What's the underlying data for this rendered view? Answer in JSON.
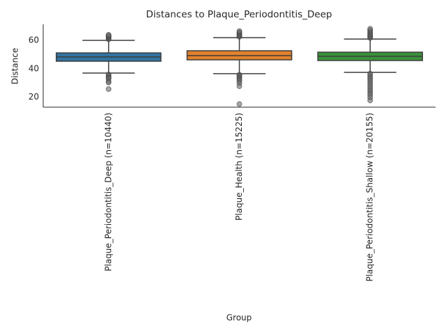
{
  "chart_data": {
    "type": "box",
    "title": "Distances to Plaque_Periodontitis_Deep",
    "xlabel": "Group",
    "ylabel": "Distance",
    "categories": [
      "Plaque_Periodontitis_Deep (n=10440)",
      "Plaque_Health (n=15225)",
      "Plaque_Periodontitis_Shallow (n=20155)"
    ],
    "colors": [
      "#3274a1",
      "#e1812c",
      "#3a923a"
    ],
    "boxes": [
      {
        "whislo": 36.9,
        "q1": 45.3,
        "med": 48.3,
        "q3": 51.2,
        "whishi": 60.1,
        "fliers": [
          60.8,
          61.5,
          62.0,
          62.6,
          63.1,
          63.6,
          64.0,
          36.0,
          35.0,
          34.2,
          33.5,
          32.8,
          31.0,
          30.2,
          25.6
        ]
      },
      {
        "whislo": 36.5,
        "q1": 46.3,
        "med": 49.3,
        "q3": 52.7,
        "whishi": 62.0,
        "fliers": [
          62.6,
          63.2,
          63.9,
          64.5,
          65.2,
          65.9,
          66.6,
          35.8,
          35.0,
          34.2,
          33.3,
          32.4,
          31.2,
          29.8,
          27.6,
          15.0
        ]
      },
      {
        "whislo": 37.4,
        "q1": 45.8,
        "med": 48.8,
        "q3": 51.7,
        "whishi": 61.0,
        "fliers": [
          61.7,
          62.4,
          63.1,
          63.8,
          64.6,
          65.5,
          66.4,
          67.3,
          68.3,
          36.6,
          35.4,
          34.1,
          32.8,
          31.4,
          30.0,
          28.6,
          27.1,
          25.6,
          24.2,
          22.8,
          21.3,
          19.6,
          17.5
        ]
      }
    ],
    "ylim": [
      12.8,
      71.4
    ],
    "yticks": [
      20,
      40,
      60
    ],
    "grid": false
  }
}
